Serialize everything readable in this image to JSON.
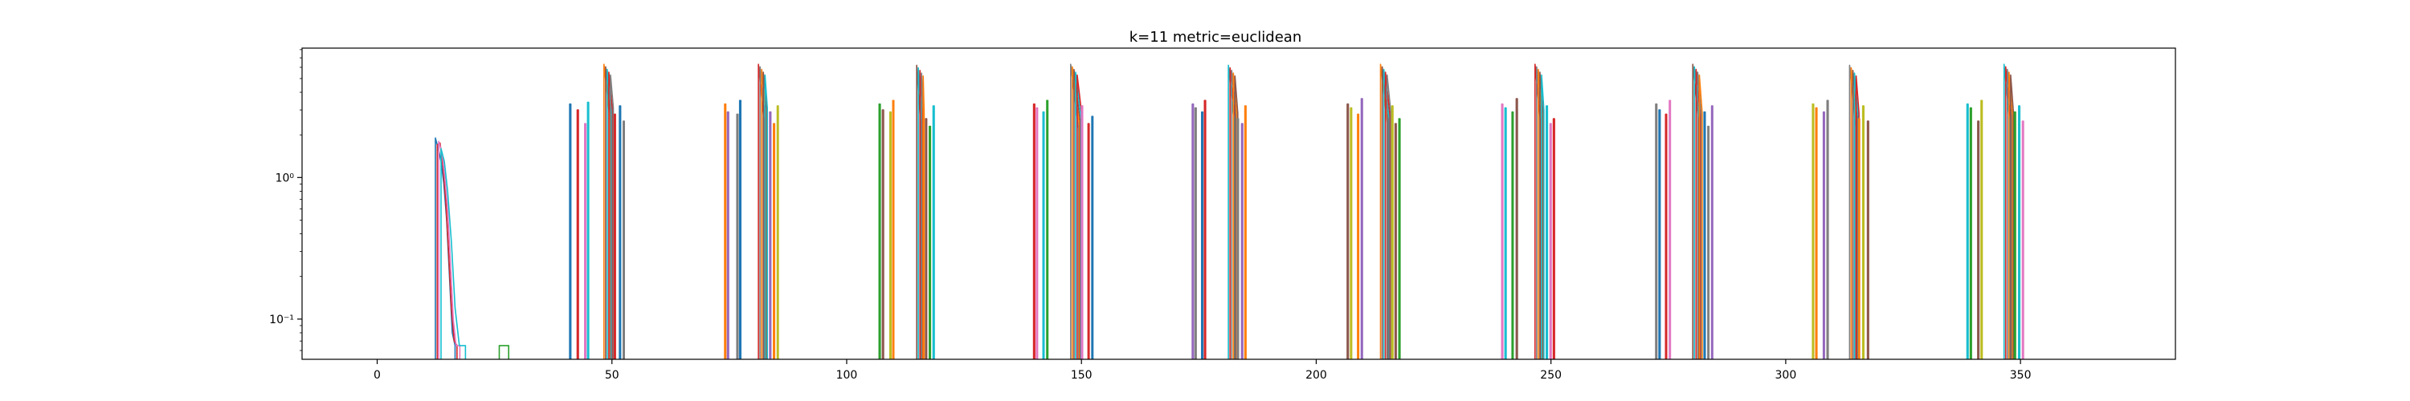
{
  "chart_data": {
    "type": "line",
    "title": "k=11 metric=euclidean",
    "xlabel": "",
    "ylabel": "",
    "xlim": [
      -16,
      383
    ],
    "ylim": [
      0.052,
      8.2
    ],
    "yscale": "log",
    "grid": false,
    "legend": "none",
    "xticks": [
      0,
      50,
      100,
      150,
      200,
      250,
      300,
      350
    ],
    "xtick_labels": [
      "0",
      "50",
      "100",
      "150",
      "200",
      "250",
      "300",
      "350"
    ],
    "yticks": [
      0.1,
      1
    ],
    "ytick_labels": [
      "10⁻¹",
      "10⁰"
    ],
    "colors": [
      "#1f77b4",
      "#ff7f0e",
      "#2ca02c",
      "#d62728",
      "#9467bd",
      "#8c564b",
      "#e377c2",
      "#7f7f7f",
      "#bcbd22",
      "#17becf"
    ],
    "floor": 0.052,
    "low_cluster": [
      {
        "x": [
          12.4,
          13.0,
          13.6,
          14.2,
          14.8,
          15.4,
          16.0,
          16.6
        ],
        "y": [
          1.9,
          1.6,
          1.3,
          0.9,
          0.5,
          0.2,
          0.08,
          0.065
        ]
      },
      {
        "x": [
          12.8,
          13.4,
          14.0,
          14.6,
          15.2,
          15.8,
          16.4,
          17.0
        ],
        "y": [
          1.7,
          1.75,
          1.2,
          0.7,
          0.3,
          0.12,
          0.07,
          0.065
        ]
      },
      {
        "x": [
          13.1,
          13.8,
          14.4,
          15.0,
          15.6,
          16.2,
          16.8,
          17.6
        ],
        "y": [
          1.8,
          1.5,
          1.0,
          0.6,
          0.25,
          0.1,
          0.065,
          0.065
        ]
      },
      {
        "x": [
          13.6,
          14.3,
          15.0,
          15.8,
          16.6,
          17.5,
          18.4,
          18.8
        ],
        "y": [
          1.6,
          1.3,
          0.8,
          0.35,
          0.12,
          0.065,
          0.065,
          0.065
        ]
      },
      {
        "x": [
          26.0,
          26.3,
          27.7,
          28.0
        ],
        "y": [
          0.065,
          0.065,
          0.065,
          0.065
        ]
      }
    ],
    "clusters": [
      {
        "spikes": [
          [
            41.0,
            3.3
          ],
          [
            42.6,
            3.0
          ],
          [
            44.2,
            2.4
          ],
          [
            44.8,
            3.4
          ]
        ],
        "peak": [
          48.3,
          6.3,
          49.6,
          2.5
        ],
        "tail": [
          [
            50.5,
            2.8
          ],
          [
            51.6,
            3.2
          ],
          [
            52.4,
            2.5
          ]
        ]
      },
      {
        "spikes": [
          [
            74.0,
            3.3
          ],
          [
            74.6,
            2.9
          ],
          [
            76.6,
            2.8
          ],
          [
            77.2,
            3.5
          ]
        ],
        "peak": [
          81.2,
          6.3,
          82.4,
          2.5
        ],
        "tail": [
          [
            83.6,
            2.9
          ],
          [
            84.4,
            2.4
          ],
          [
            85.2,
            3.2
          ]
        ]
      },
      {
        "spikes": [
          [
            106.9,
            3.3
          ],
          [
            107.6,
            3.0
          ],
          [
            109.2,
            2.9
          ],
          [
            109.8,
            3.5
          ]
        ],
        "peak": [
          114.9,
          6.2,
          115.8,
          2.3
        ],
        "tail": [
          [
            116.8,
            2.6
          ],
          [
            117.6,
            2.3
          ],
          [
            118.4,
            3.2
          ]
        ]
      },
      {
        "spikes": [
          [
            139.8,
            3.3
          ],
          [
            140.4,
            3.1
          ],
          [
            141.8,
            2.9
          ],
          [
            142.6,
            3.5
          ]
        ],
        "peak": [
          147.7,
          6.3,
          149.4,
          2.2
        ],
        "tail": [
          [
            150.0,
            3.2
          ],
          [
            151.4,
            2.4
          ],
          [
            152.2,
            2.7
          ]
        ]
      },
      {
        "spikes": [
          [
            173.6,
            3.3
          ],
          [
            174.2,
            3.1
          ],
          [
            175.6,
            2.9
          ],
          [
            176.2,
            3.5
          ]
        ],
        "peak": [
          181.3,
          6.2,
          182.6,
          2.3
        ],
        "tail": [
          [
            183.2,
            2.6
          ],
          [
            184.1,
            2.4
          ],
          [
            184.8,
            3.2
          ]
        ]
      },
      {
        "spikes": [
          [
            206.6,
            3.3
          ],
          [
            207.3,
            3.1
          ],
          [
            208.8,
            2.8
          ],
          [
            209.6,
            3.6
          ]
        ],
        "peak": [
          213.7,
          6.3,
          215.2,
          2.3
        ],
        "tail": [
          [
            216.1,
            3.2
          ],
          [
            216.8,
            2.4
          ],
          [
            217.6,
            2.6
          ]
        ]
      },
      {
        "spikes": [
          [
            239.5,
            3.3
          ],
          [
            240.2,
            3.1
          ],
          [
            241.7,
            2.9
          ],
          [
            242.6,
            3.6
          ]
        ],
        "peak": [
          246.6,
          6.3,
          247.8,
          2.4
        ],
        "tail": [
          [
            249.0,
            3.2
          ],
          [
            249.8,
            2.4
          ],
          [
            250.5,
            2.6
          ]
        ]
      },
      {
        "spikes": [
          [
            272.3,
            3.3
          ],
          [
            273.0,
            3.0
          ],
          [
            274.4,
            2.8
          ],
          [
            275.2,
            3.5
          ]
        ],
        "peak": [
          280.2,
          6.3,
          281.5,
          2.3
        ],
        "tail": [
          [
            282.6,
            2.9
          ],
          [
            283.4,
            2.3
          ],
          [
            284.2,
            3.2
          ]
        ]
      },
      {
        "spikes": [
          [
            305.7,
            3.3
          ],
          [
            306.4,
            3.1
          ],
          [
            308.0,
            2.9
          ],
          [
            308.8,
            3.5
          ]
        ],
        "peak": [
          313.6,
          6.2,
          314.9,
          2.3
        ],
        "tail": [
          [
            315.5,
            2.6
          ],
          [
            316.4,
            3.2
          ],
          [
            317.4,
            2.5
          ]
        ]
      },
      {
        "spikes": [
          [
            338.6,
            3.3
          ],
          [
            339.3,
            3.1
          ],
          [
            340.9,
            2.5
          ],
          [
            341.6,
            3.5
          ]
        ],
        "peak": [
          346.5,
          6.3,
          347.8,
          2.3
        ],
        "tail": [
          [
            348.7,
            2.9
          ],
          [
            349.6,
            3.2
          ],
          [
            350.4,
            2.5
          ]
        ]
      }
    ]
  }
}
